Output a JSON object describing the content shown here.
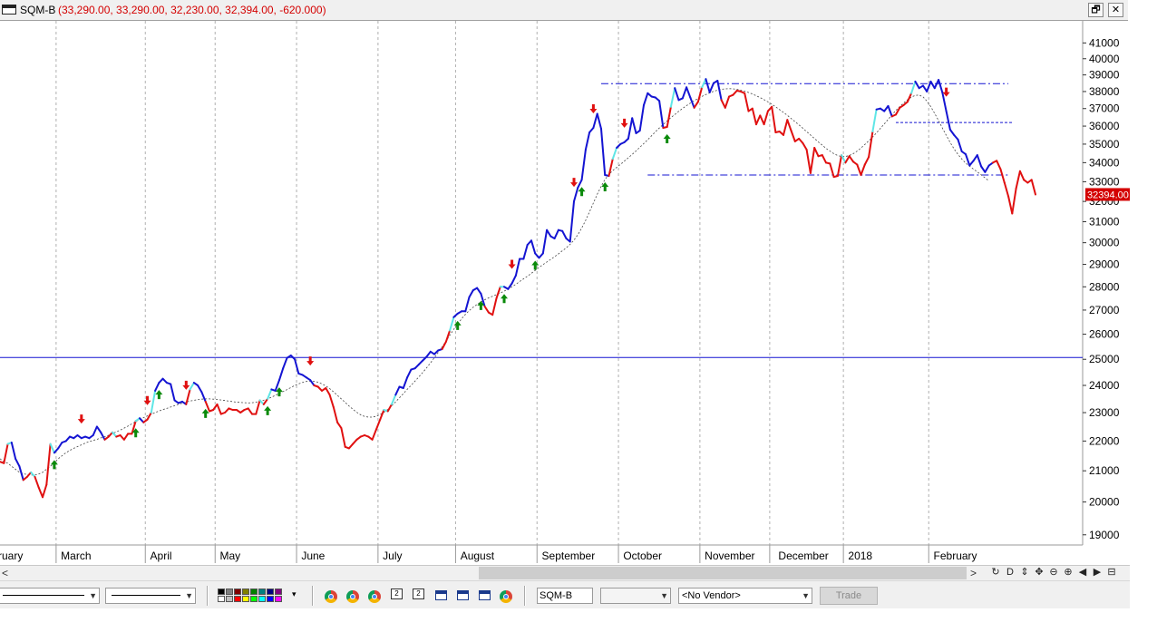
{
  "window": {
    "symbol": "SQM-B",
    "ohlc": "(33,290.00, 33,290.00, 32,230.00, 32,394.00, -620.000)",
    "restore_label": "🗗",
    "close_label": "✕"
  },
  "chart_data": {
    "type": "line",
    "title": "",
    "xlabel": "",
    "ylabel": "",
    "ylim": [
      18700,
      42200
    ],
    "y_scale": "log",
    "y_ticks": [
      19000,
      20000,
      21000,
      22000,
      23000,
      24000,
      25000,
      26000,
      27000,
      28000,
      29000,
      30000,
      31000,
      32000,
      33000,
      34000,
      35000,
      36000,
      37000,
      38000,
      39000,
      40000,
      41000
    ],
    "x_labels": [
      "ruary",
      "March",
      "April",
      "May",
      "June",
      "July",
      "August",
      "September",
      "October",
      "November",
      "December",
      "2018",
      "February"
    ],
    "last_price_label": "32394.00",
    "grid": "vertical dashed at month boundaries",
    "colors": {
      "blue": "#1414d2",
      "cyan": "#5fe6e6",
      "red": "#e01010",
      "ma": "#444444",
      "hline": "#1414d2",
      "arrow_up": "#0a8a0a",
      "arrow_down": "#e01010"
    },
    "series": [
      {
        "values": [
          21300,
          21250,
          21900,
          21950,
          21400,
          21150,
          20700,
          20800,
          20950,
          20800,
          20450,
          20150,
          20550,
          21900,
          21600,
          21750,
          21950,
          22000,
          22150,
          22100,
          22200,
          22100,
          22150,
          22100,
          22200,
          22500,
          22300,
          22050,
          22150,
          22300,
          22150,
          22200,
          22050,
          22250,
          22250,
          22700,
          22800,
          22650,
          22750,
          23000,
          23800,
          24100,
          24250,
          24100,
          24050,
          23450,
          23350,
          23400,
          23300,
          23850,
          24100,
          24000,
          23750,
          23400,
          23050,
          23100,
          23300,
          22950,
          23000,
          23150,
          23100,
          23100,
          23000,
          23100,
          23150,
          22950,
          22950,
          23450,
          23300,
          23500,
          23850,
          23800,
          24200,
          24650,
          25050,
          25150,
          25000,
          24450,
          24400,
          24300,
          24200,
          24000,
          23950,
          23800,
          23900,
          23650,
          23200,
          22650,
          22450,
          21800,
          21750,
          21900,
          22050,
          22150,
          22200,
          22150,
          22050,
          22400,
          22750,
          23100,
          23050,
          23300,
          23650,
          23950,
          23900,
          24300,
          24600,
          24650,
          24800,
          24950,
          25100,
          25300,
          25200,
          25350,
          25400,
          25700,
          26150,
          26700,
          26850,
          26950,
          26950,
          27550,
          27850,
          27950,
          27700,
          27150,
          26900,
          26800,
          27500,
          28000,
          28000,
          27900,
          28150,
          28500,
          29250,
          29250,
          29900,
          30100,
          29500,
          29300,
          29500,
          30600,
          30300,
          30200,
          30600,
          30550,
          30200,
          30050,
          32000,
          32700,
          33100,
          34700,
          35650,
          35900,
          36700,
          35850,
          33350,
          33300,
          34200,
          34800,
          35000,
          35100,
          35300,
          36450,
          35600,
          35750,
          37200,
          37900,
          37700,
          37650,
          37450,
          35900,
          35950,
          37100,
          38200,
          37500,
          37600,
          38250,
          37650,
          37050,
          37400,
          38250,
          38750,
          37950,
          38500,
          38650,
          37500,
          37050,
          37700,
          37800,
          38050,
          38000,
          37900,
          36850,
          37000,
          36100,
          36600,
          36100,
          36850,
          37100,
          35650,
          35700,
          35500,
          36350,
          35750,
          35150,
          35300,
          35050,
          34700,
          33450,
          34800,
          34350,
          34400,
          34000,
          33950,
          33250,
          33300,
          34400,
          34000,
          34350,
          34050,
          33900,
          33350,
          33900,
          34300,
          35700,
          36950,
          37000,
          36850,
          37150,
          36550,
          36650,
          37050,
          37200,
          37400,
          37900,
          38600,
          38200,
          38350,
          38000,
          38600,
          38200,
          38700,
          37950,
          36850,
          35800,
          35500,
          35250,
          34600,
          34450,
          33850,
          34100,
          34400,
          33800,
          33500,
          33850,
          34000,
          34100,
          33650,
          32950,
          32250,
          31400,
          32650,
          33550,
          33100,
          32950,
          33100,
          32350
        ]
      },
      {
        "name": "",
        "values": [
          21400,
          21300,
          21250,
          21150,
          21050,
          20950,
          20900,
          20880,
          20860,
          20860,
          20900,
          20950,
          21050,
          21150,
          21260,
          21400,
          21500,
          21600,
          21680,
          21750,
          21810,
          21870,
          21930,
          21980,
          22020,
          22060,
          22110,
          22150,
          22200,
          22260,
          22320,
          22380,
          22450,
          22520,
          22600,
          22680,
          22750,
          22820,
          22880,
          22940,
          23000,
          23060,
          23110,
          23150,
          23200,
          23250,
          23300,
          23340,
          23380,
          23420,
          23450,
          23470,
          23490,
          23500,
          23500,
          23490,
          23480,
          23460,
          23440,
          23420,
          23400,
          23380,
          23370,
          23360,
          23350,
          23360,
          23380,
          23410,
          23450,
          23500,
          23560,
          23630,
          23700,
          23770,
          23840,
          23920,
          24000,
          24060,
          24110,
          24150,
          24160,
          24150,
          24120,
          24060,
          23980,
          23880,
          23760,
          23630,
          23500,
          23370,
          23240,
          23120,
          23010,
          22920,
          22860,
          22840,
          22840,
          22870,
          22930,
          23010,
          23120,
          23250,
          23390,
          23540,
          23690,
          23850,
          24000,
          24160,
          24320,
          24490,
          24670,
          24860,
          25060,
          25270,
          25490,
          25720,
          25960,
          26200,
          26420,
          26630,
          26820,
          26980,
          27120,
          27240,
          27350,
          27440,
          27520,
          27590,
          27660,
          27730,
          27810,
          27900,
          28000,
          28110,
          28230,
          28350,
          28470,
          28600,
          28730,
          28860,
          28990,
          29110,
          29230,
          29350,
          29480,
          29620,
          29760,
          29920,
          30120,
          30380,
          30700,
          31070,
          31480,
          31920,
          32360,
          32770,
          33120,
          33380,
          33580,
          33750,
          33910,
          34080,
          34260,
          34440,
          34630,
          34830,
          35030,
          35240,
          35460,
          35680,
          35890,
          36090,
          36290,
          36480,
          36660,
          36840,
          37010,
          37170,
          37320,
          37460,
          37590,
          37710,
          37820,
          37920,
          38010,
          38080,
          38130,
          38160,
          38170,
          38160,
          38130,
          38080,
          38020,
          37940,
          37850,
          37750,
          37640,
          37520,
          37390,
          37250,
          37100,
          36940,
          36780,
          36610,
          36430,
          36250,
          36070,
          35880,
          35690,
          35500,
          35310,
          35120,
          34940,
          34770,
          34620,
          34480,
          34380,
          34330,
          34330,
          34380,
          34480,
          34620,
          34790,
          34980,
          35180,
          35390,
          35620,
          35870,
          36120,
          36380,
          36640,
          36890,
          37120,
          37330,
          37520,
          37670,
          37770,
          37790,
          37680,
          37440,
          37110,
          36720,
          36310,
          35890,
          35480,
          35090,
          34740,
          34440,
          34190,
          33980,
          33810,
          33660,
          33510,
          33360,
          33200,
          33040
        ]
      }
    ],
    "support_resistance": [
      {
        "from_index": 155,
        "to_index": 260,
        "value": 38470
      },
      {
        "from_index": 167,
        "to_index": 260,
        "value": 33350
      },
      {
        "from_index": 231,
        "to_index": 261,
        "value": 36200
      },
      {
        "from_index": 0,
        "to_index": 285,
        "value": 25070
      }
    ],
    "signals": [
      {
        "index": 14,
        "type": "up"
      },
      {
        "index": 21,
        "type": "down"
      },
      {
        "index": 35,
        "type": "up"
      },
      {
        "index": 38,
        "type": "down"
      },
      {
        "index": 41,
        "type": "up"
      },
      {
        "index": 48,
        "type": "down"
      },
      {
        "index": 53,
        "type": "up"
      },
      {
        "index": 69,
        "type": "up"
      },
      {
        "index": 72,
        "type": "up"
      },
      {
        "index": 80,
        "type": "down"
      },
      {
        "index": 118,
        "type": "up"
      },
      {
        "index": 124,
        "type": "up"
      },
      {
        "index": 130,
        "type": "up"
      },
      {
        "index": 132,
        "type": "down"
      },
      {
        "index": 138,
        "type": "up"
      },
      {
        "index": 148,
        "type": "down"
      },
      {
        "index": 150,
        "type": "up"
      },
      {
        "index": 153,
        "type": "down"
      },
      {
        "index": 156,
        "type": "up"
      },
      {
        "index": 161,
        "type": "down"
      },
      {
        "index": 172,
        "type": "up"
      },
      {
        "index": 244,
        "type": "down"
      }
    ]
  },
  "scrollbar": {
    "left": "<",
    "right": ">",
    "tools": [
      "↻",
      "D",
      "⇕",
      "✥",
      "⊖",
      "⊕",
      "◀",
      "▶",
      "⊟"
    ]
  },
  "toolbar": {
    "line_style_1": "",
    "line_style_2": "",
    "swatch_colors": [
      "#000000",
      "#808080",
      "#800000",
      "#808000",
      "#008000",
      "#008080",
      "#000080",
      "#800080",
      "#ffffff",
      "#c0c0c0",
      "#ff0000",
      "#ffff00",
      "#00ff00",
      "#00ffff",
      "#0000ff",
      "#ff00ff"
    ],
    "swatch_menu": "▾",
    "symbol": "SQM-B",
    "interval": "",
    "vendor": "<No Vendor>",
    "trade_label": "Trade",
    "doc1": "2",
    "doc2": "2"
  }
}
